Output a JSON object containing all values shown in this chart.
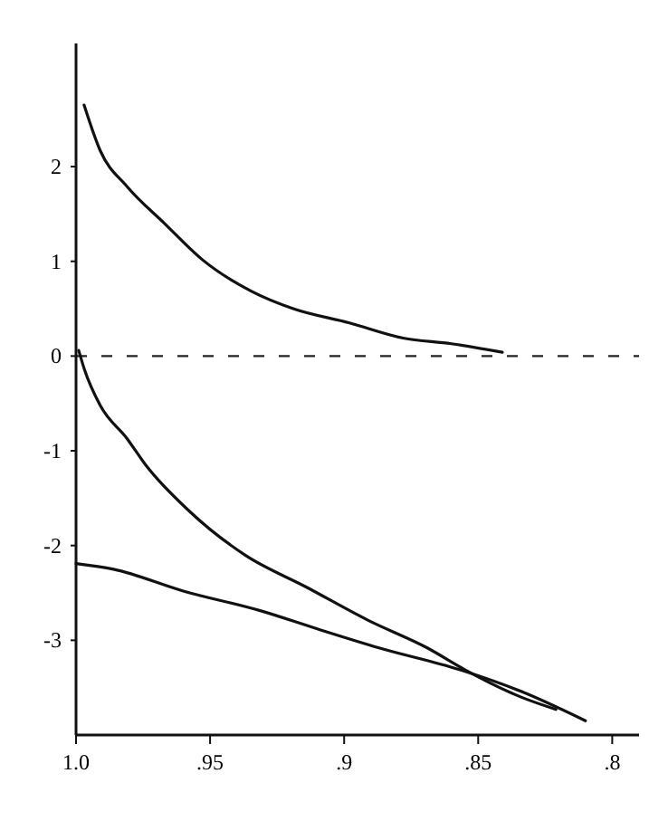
{
  "chart_data": {
    "type": "line",
    "xlim": [
      1.0,
      0.79
    ],
    "ylim": [
      -4.0,
      3.3
    ],
    "xticks": [
      {
        "value": 1.0,
        "label": "1.0"
      },
      {
        "value": 0.95,
        "label": ".95"
      },
      {
        "value": 0.9,
        "label": ".9"
      },
      {
        "value": 0.85,
        "label": ".85"
      },
      {
        "value": 0.8,
        "label": ".8"
      }
    ],
    "yticks": [
      2,
      1,
      0,
      -1,
      -2,
      -3
    ],
    "series": [
      {
        "color": "#111111",
        "x": [
          0.997,
          0.991,
          0.981,
          0.967,
          0.953,
          0.935,
          0.919,
          0.898,
          0.878,
          0.86,
          0.841
        ],
        "values": [
          2.65,
          2.17,
          1.79,
          1.4,
          1.02,
          0.69,
          0.5,
          0.35,
          0.19,
          0.13,
          0.04
        ]
      },
      {
        "color": "#111111",
        "x": [
          0.999,
          0.997,
          0.991,
          0.981,
          0.974,
          0.958,
          0.937,
          0.914,
          0.891,
          0.869,
          0.855,
          0.834,
          0.821
        ],
        "values": [
          0.06,
          -0.13,
          -0.52,
          -0.87,
          -1.15,
          -1.63,
          -2.1,
          -2.44,
          -2.79,
          -3.08,
          -3.31,
          -3.6,
          -3.73
        ]
      },
      {
        "color": "#111111",
        "x": [
          1.0,
          0.986,
          0.96,
          0.931,
          0.91,
          0.887,
          0.857,
          0.834,
          0.81
        ],
        "values": [
          -2.19,
          -2.25,
          -2.48,
          -2.69,
          -2.88,
          -3.08,
          -3.31,
          -3.54,
          -3.85
        ]
      }
    ],
    "ref_lines": [
      {
        "axis": "y",
        "value": 0,
        "line_style": "dashed",
        "color": "#222222"
      }
    ]
  }
}
